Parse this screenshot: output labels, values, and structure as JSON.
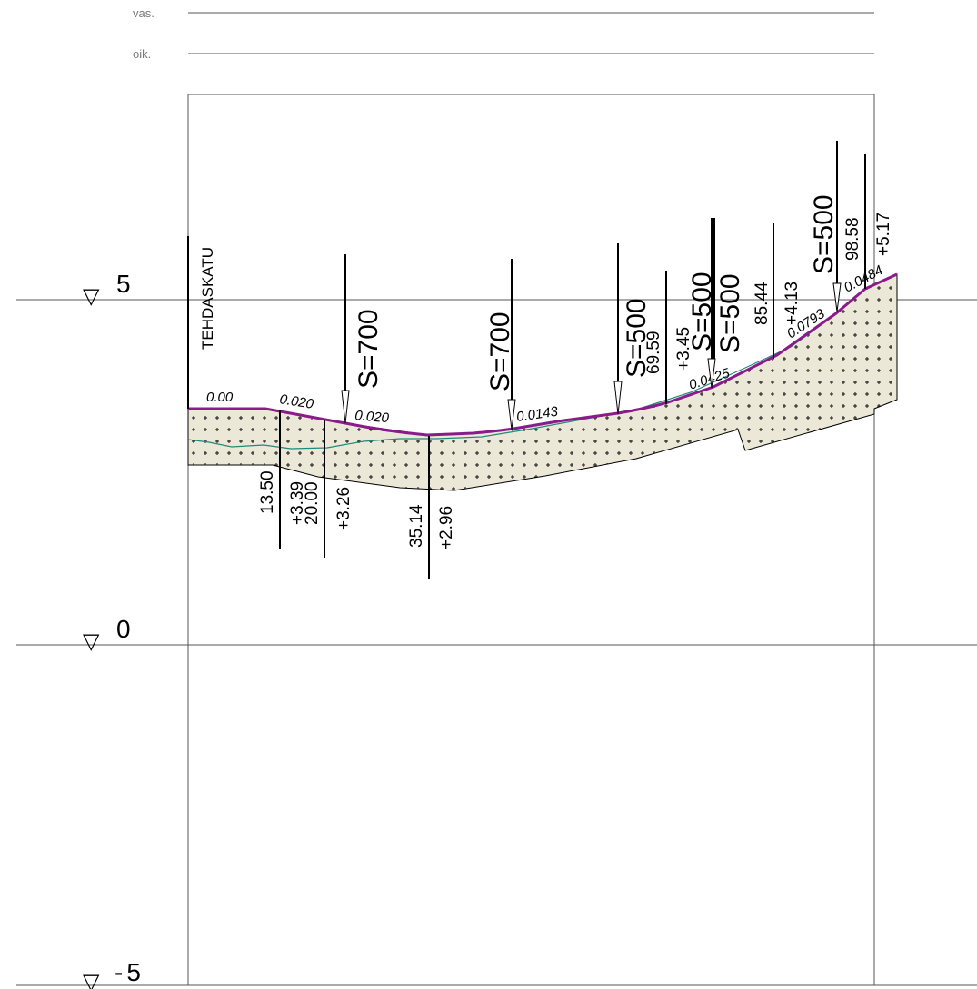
{
  "legend": {
    "left": "vas.",
    "right": "oik."
  },
  "elevations": [
    {
      "label": "5",
      "icon": "triangle-down-icon"
    },
    {
      "label": "0",
      "icon": "triangle-down-icon"
    },
    {
      "label": "-5",
      "icon": "triangle-down-icon"
    }
  ],
  "road_name": "TEHDASKATU",
  "stations": [
    {
      "station": "13.50",
      "height": "+3.39"
    },
    {
      "station": "20.00",
      "height": "+3.26"
    },
    {
      "station": "35.14",
      "height": "+2.96"
    },
    {
      "station": "69.59",
      "height": "+3.45"
    },
    {
      "station": "85.44",
      "height": "+4.13"
    },
    {
      "station": "98.58",
      "height": "+5.17"
    }
  ],
  "slopes": [
    "0.00",
    "0.020",
    "0.020",
    "0.0143",
    "0.0425",
    "0.0793",
    "0.0484"
  ],
  "curves": [
    "S=700",
    "S=700",
    "S=500",
    "S=500",
    "S=500",
    "S=500"
  ],
  "colors": {
    "profile": "#8b1a8b",
    "ground": "#1f8a7a",
    "fill": "#ece8d8",
    "line": "#555555"
  }
}
